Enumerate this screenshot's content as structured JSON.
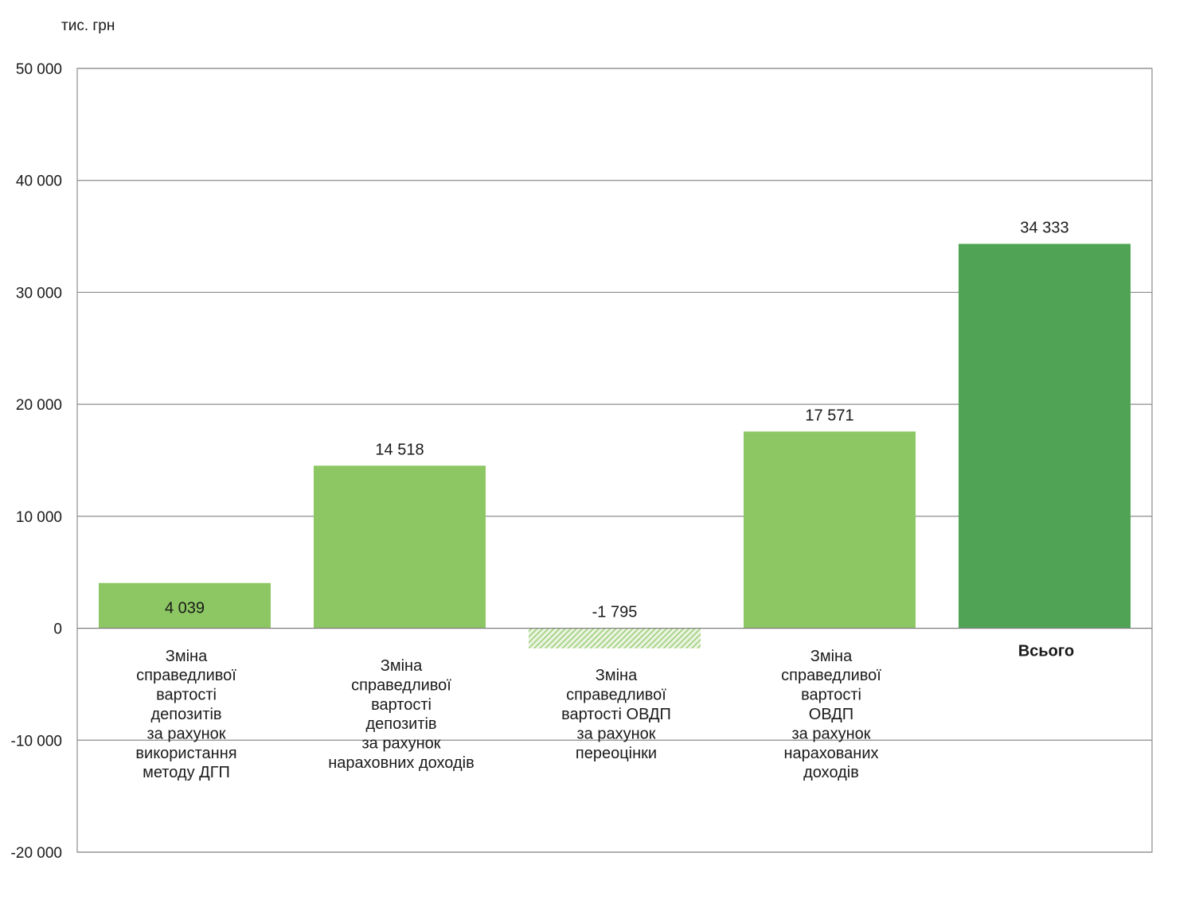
{
  "chart_data": {
    "type": "bar",
    "unit_label": "тис. грн",
    "ylim": [
      -20000,
      50000
    ],
    "y_ticks": [
      {
        "value": 50000,
        "label": "50 000"
      },
      {
        "value": 40000,
        "label": "40 000"
      },
      {
        "value": 30000,
        "label": "30 000"
      },
      {
        "value": 20000,
        "label": "20 000"
      },
      {
        "value": 10000,
        "label": "10 000"
      },
      {
        "value": 0,
        "label": "0"
      },
      {
        "value": -10000,
        "label": "-10 000"
      },
      {
        "value": -20000,
        "label": "-20 000"
      }
    ],
    "grid": true,
    "legend": "none",
    "bars": [
      {
        "category_lines": [
          "Зміна",
          "справедливої",
          "вартості",
          "депозитів",
          "за рахунок",
          "використання",
          "методу ДГП"
        ],
        "value": 4039,
        "value_label": "4 039",
        "color": "#8cc763",
        "style": "solid",
        "bold": false
      },
      {
        "category_lines": [
          "Зміна",
          "справедливої",
          "вартості",
          "депозитів",
          "за рахунок",
          "нараховних доходів"
        ],
        "value": 14518,
        "value_label": "14 518",
        "color": "#8cc763",
        "style": "solid",
        "bold": false
      },
      {
        "category_lines": [
          "Зміна",
          "справедливої",
          "вартості ОВДП",
          "за рахунок",
          "переоцінки"
        ],
        "value": -1795,
        "value_label": "-1 795",
        "color": "#a5cf86",
        "style": "hatched",
        "bold": false
      },
      {
        "category_lines": [
          "Зміна",
          "справедливої",
          "вартості",
          "ОВДП",
          "за рахунок",
          "нарахованих",
          "доходів"
        ],
        "value": 17571,
        "value_label": "17 571",
        "color": "#8cc763",
        "style": "solid",
        "bold": false
      },
      {
        "category_lines": [
          "Всього"
        ],
        "value": 34333,
        "value_label": "34 333",
        "color": "#50a355",
        "style": "solid",
        "bold": true
      }
    ]
  }
}
